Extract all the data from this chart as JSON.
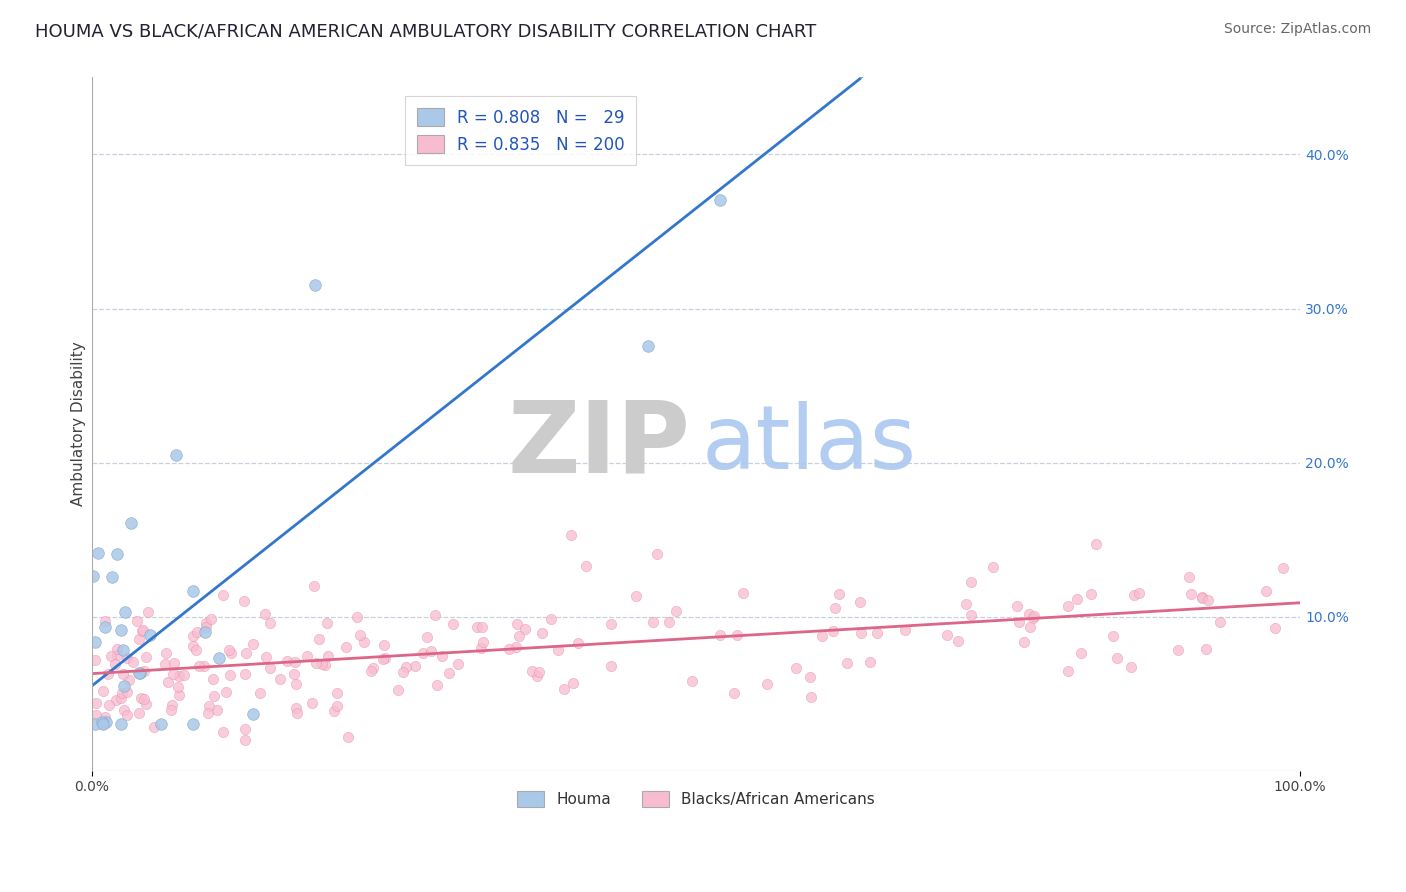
{
  "title": "HOUMA VS BLACK/AFRICAN AMERICAN AMBULATORY DISABILITY CORRELATION CHART",
  "source": "Source: ZipAtlas.com",
  "ylabel": "Ambulatory Disability",
  "xlim": [
    0.0,
    1.0
  ],
  "ylim": [
    0.0,
    0.45
  ],
  "yticks_right": [
    0.1,
    0.2,
    0.3,
    0.4
  ],
  "ytick_right_labels": [
    "10.0%",
    "20.0%",
    "30.0%",
    "40.0%"
  ],
  "houma_R": 0.808,
  "houma_N": 29,
  "black_R": 0.835,
  "black_N": 200,
  "houma_fill_color": "#aac8e8",
  "houma_edge_color": "#88aacc",
  "black_fill_color": "#f8bcd0",
  "black_edge_color": "#e890a8",
  "trend_blue": "#3377cc",
  "trend_pink": "#dd6688",
  "legend_R_color": "#2255bb",
  "watermark_ZIP_color": "#cccccc",
  "watermark_atlas_color": "#aac8f0",
  "grid_color": "#c8d0e0",
  "background": "#ffffff",
  "title_fontsize": 13,
  "source_fontsize": 10,
  "legend_fontsize": 12,
  "axis_label_fontsize": 11,
  "tick_fontsize": 10,
  "houma_slope": 0.62,
  "houma_intercept": 0.055,
  "black_slope": 0.046,
  "black_intercept": 0.063
}
